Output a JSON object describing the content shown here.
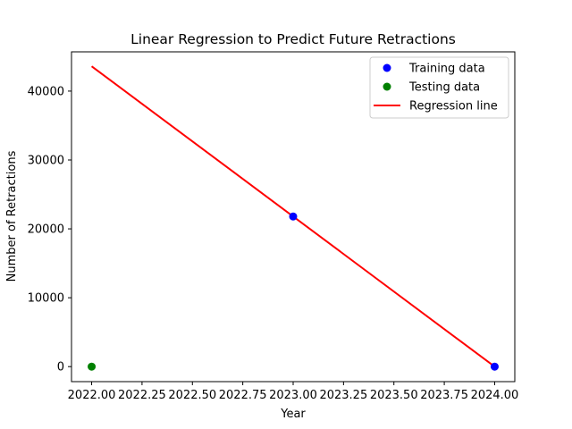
{
  "chart_data": {
    "type": "scatter",
    "title": "Linear Regression to Predict Future Retractions",
    "xlabel": "Year",
    "ylabel": "Number of Retractions",
    "xlim": [
      2021.9,
      2024.1
    ],
    "ylim": [
      -2180,
      45700
    ],
    "x_ticks": [
      2022.0,
      2022.25,
      2022.5,
      2022.75,
      2023.0,
      2023.25,
      2023.5,
      2023.75,
      2024.0
    ],
    "x_tick_labels": [
      "2022.00",
      "2022.25",
      "2022.50",
      "2022.75",
      "2023.00",
      "2023.25",
      "2023.50",
      "2023.75",
      "2024.00"
    ],
    "y_ticks": [
      0,
      10000,
      20000,
      30000,
      40000
    ],
    "y_tick_labels": [
      "0",
      "10000",
      "20000",
      "30000",
      "40000"
    ],
    "grid": false,
    "legend_position": "top-right",
    "series": [
      {
        "name": "Training data",
        "kind": "scatter",
        "color": "#0000ff",
        "x": [
          2023.0,
          2024.0
        ],
        "y": [
          21800,
          0
        ]
      },
      {
        "name": "Testing data",
        "kind": "scatter",
        "color": "#008000",
        "x": [
          2022.0
        ],
        "y": [
          0
        ]
      },
      {
        "name": "Regression line",
        "kind": "line",
        "color": "#ff0000",
        "x": [
          2022.0,
          2024.0
        ],
        "y": [
          43600,
          0
        ]
      }
    ]
  }
}
